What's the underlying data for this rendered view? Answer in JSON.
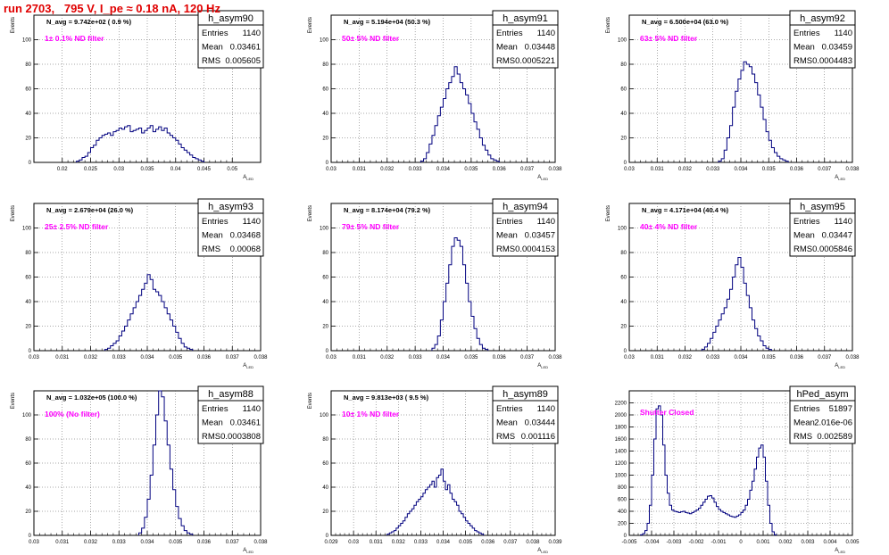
{
  "run_title": "run 2703,   795 V, I_pe ≈ 0.18 nA, 120 Hz",
  "colors": {
    "histogram": "#00007f",
    "annotation": "#ff00ff",
    "title": "#e00000",
    "grid": "#555555"
  },
  "stat_labels": {
    "entries": "Entries",
    "mean": "Mean",
    "rms": "RMS"
  },
  "chart_data": [
    {
      "type": "histogram",
      "name": "h_asym90",
      "navg": "N_avg = 9.742e+02 ( 0.9 %)",
      "note": "1± 0.1% ND filter",
      "stats": {
        "entries": "1140",
        "mean": "0.03461",
        "rms": "0.005605"
      },
      "xlabel": "A_LED",
      "ylabel": "Events",
      "xlim": [
        0.015,
        0.055
      ],
      "ylim": [
        0,
        120
      ],
      "xticks": [
        0.02,
        0.025,
        0.03,
        0.035,
        0.04,
        0.045,
        0.05
      ],
      "xtick_labels": [
        "0.02",
        "0.025",
        "0.03",
        "0.035",
        "0.04",
        "0.045",
        "0.05"
      ],
      "yticks": [
        0,
        20,
        40,
        60,
        80,
        100
      ],
      "hist": {
        "start": 0.0225,
        "width": 0.0005,
        "counts": [
          1,
          2,
          4,
          5,
          8,
          12,
          14,
          18,
          20,
          22,
          23,
          24,
          22,
          25,
          26,
          28,
          27,
          29,
          30,
          25,
          26,
          27,
          28,
          24,
          26,
          28,
          30,
          25,
          27,
          29,
          26,
          28,
          24,
          22,
          20,
          18,
          15,
          12,
          10,
          8,
          6,
          4,
          3,
          2,
          1
        ]
      }
    },
    {
      "type": "histogram",
      "name": "h_asym91",
      "navg": "N_avg = 5.194e+04 (50.3 %)",
      "note": "50± 5% ND filter",
      "stats": {
        "entries": "1140",
        "mean": "0.03448",
        "rms": "0.0005221"
      },
      "xlabel": "A_LED",
      "ylabel": "Events",
      "xlim": [
        0.03,
        0.038
      ],
      "ylim": [
        0,
        120
      ],
      "xticks": [
        0.03,
        0.031,
        0.032,
        0.033,
        0.034,
        0.035,
        0.036,
        0.037,
        0.038
      ],
      "xtick_labels": [
        "0.03",
        "0.031",
        "0.032",
        "0.033",
        "0.034",
        "0.035",
        "0.036",
        "0.037",
        "0.038"
      ],
      "yticks": [
        0,
        20,
        40,
        60,
        80,
        100
      ],
      "hist": {
        "start": 0.0332,
        "width": 0.0001,
        "counts": [
          1,
          3,
          8,
          15,
          22,
          30,
          38,
          45,
          52,
          60,
          65,
          70,
          78,
          72,
          65,
          60,
          55,
          48,
          40,
          33,
          27,
          20,
          14,
          10,
          6,
          3,
          2,
          1
        ]
      }
    },
    {
      "type": "histogram",
      "name": "h_asym92",
      "navg": "N_avg = 6.500e+04 (63.0 %)",
      "note": "63± 5% ND filter",
      "stats": {
        "entries": "1140",
        "mean": "0.03459",
        "rms": "0.0004483"
      },
      "xlabel": "A_LED",
      "ylabel": "Events",
      "xlim": [
        0.03,
        0.038
      ],
      "ylim": [
        0,
        120
      ],
      "xticks": [
        0.03,
        0.031,
        0.032,
        0.033,
        0.034,
        0.035,
        0.036,
        0.037,
        0.038
      ],
      "xtick_labels": [
        "0.03",
        "0.031",
        "0.032",
        "0.033",
        "0.034",
        "0.035",
        "0.036",
        "0.037",
        "0.038"
      ],
      "yticks": [
        0,
        20,
        40,
        60,
        80,
        100
      ],
      "hist": {
        "start": 0.0332,
        "width": 0.0001,
        "counts": [
          1,
          3,
          10,
          20,
          30,
          45,
          58,
          68,
          75,
          82,
          80,
          78,
          72,
          65,
          55,
          45,
          35,
          25,
          18,
          12,
          8,
          5,
          3,
          2,
          1
        ]
      }
    },
    {
      "type": "histogram",
      "name": "h_asym93",
      "navg": "N_avg = 2.679e+04 (26.0 %)",
      "note": "25± 2.5% ND filter",
      "stats": {
        "entries": "1140",
        "mean": "0.03468",
        "rms": "0.00068"
      },
      "xlabel": "A_LED",
      "ylabel": "Events",
      "xlim": [
        0.03,
        0.038
      ],
      "ylim": [
        0,
        120
      ],
      "xticks": [
        0.03,
        0.031,
        0.032,
        0.033,
        0.034,
        0.035,
        0.036,
        0.037,
        0.038
      ],
      "xtick_labels": [
        "0.03",
        "0.031",
        "0.032",
        "0.033",
        "0.034",
        "0.035",
        "0.036",
        "0.037",
        "0.038"
      ],
      "yticks": [
        0,
        20,
        40,
        60,
        80,
        100
      ],
      "hist": {
        "start": 0.0325,
        "width": 0.0001,
        "counts": [
          1,
          2,
          4,
          6,
          8,
          12,
          16,
          20,
          25,
          30,
          35,
          40,
          45,
          50,
          55,
          62,
          58,
          50,
          48,
          45,
          40,
          35,
          30,
          25,
          20,
          15,
          10,
          6,
          3,
          2,
          1
        ]
      }
    },
    {
      "type": "histogram",
      "name": "h_asym94",
      "navg": "N_avg = 8.174e+04 (79.2 %)",
      "note": "79± 5% ND filter",
      "stats": {
        "entries": "1140",
        "mean": "0.03457",
        "rms": "0.0004153"
      },
      "xlabel": "A_LED",
      "ylabel": "Events",
      "xlim": [
        0.03,
        0.038
      ],
      "ylim": [
        0,
        120
      ],
      "xticks": [
        0.03,
        0.031,
        0.032,
        0.033,
        0.034,
        0.035,
        0.036,
        0.037,
        0.038
      ],
      "xtick_labels": [
        "0.03",
        "0.031",
        "0.032",
        "0.033",
        "0.034",
        "0.035",
        "0.036",
        "0.037",
        "0.038"
      ],
      "yticks": [
        0,
        20,
        40,
        60,
        80,
        100
      ],
      "hist": {
        "start": 0.0336,
        "width": 0.0001,
        "counts": [
          2,
          5,
          12,
          25,
          40,
          55,
          70,
          85,
          92,
          90,
          85,
          70,
          55,
          40,
          28,
          18,
          10,
          5,
          2,
          1
        ]
      }
    },
    {
      "type": "histogram",
      "name": "h_asym95",
      "navg": "N_avg = 4.171e+04 (40.4 %)",
      "note": "40± 4% ND filter",
      "stats": {
        "entries": "1140",
        "mean": "0.03447",
        "rms": "0.0005846"
      },
      "xlabel": "A_LED",
      "ylabel": "Events",
      "xlim": [
        0.03,
        0.038
      ],
      "ylim": [
        0,
        120
      ],
      "xticks": [
        0.03,
        0.031,
        0.032,
        0.033,
        0.034,
        0.035,
        0.036,
        0.037,
        0.038
      ],
      "xtick_labels": [
        "0.03",
        "0.031",
        "0.032",
        "0.033",
        "0.034",
        "0.035",
        "0.036",
        "0.037",
        "0.038"
      ],
      "yticks": [
        0,
        20,
        40,
        60,
        80,
        100
      ],
      "hist": {
        "start": 0.0326,
        "width": 0.0001,
        "counts": [
          1,
          3,
          6,
          10,
          15,
          20,
          25,
          30,
          35,
          42,
          50,
          60,
          70,
          76,
          68,
          55,
          45,
          35,
          25,
          18,
          12,
          8,
          4,
          2,
          1
        ]
      }
    },
    {
      "type": "histogram",
      "name": "h_asym88",
      "navg": "N_avg = 1.032e+05 (100.0 %)",
      "note": "100% (No filter)",
      "stats": {
        "entries": "1140",
        "mean": "0.03461",
        "rms": "0.0003808"
      },
      "xlabel": "A_LED",
      "ylabel": "Events",
      "xlim": [
        0.03,
        0.038
      ],
      "ylim": [
        0,
        120
      ],
      "xticks": [
        0.03,
        0.031,
        0.032,
        0.033,
        0.034,
        0.035,
        0.036,
        0.037,
        0.038
      ],
      "xtick_labels": [
        "0.03",
        "0.031",
        "0.032",
        "0.033",
        "0.034",
        "0.035",
        "0.036",
        "0.037",
        "0.038"
      ],
      "yticks": [
        0,
        20,
        40,
        60,
        80,
        100
      ],
      "hist": {
        "start": 0.0337,
        "width": 0.0001,
        "counts": [
          2,
          6,
          15,
          30,
          50,
          75,
          100,
          125,
          115,
          95,
          75,
          55,
          38,
          24,
          14,
          8,
          4,
          2,
          1
        ]
      }
    },
    {
      "type": "histogram",
      "name": "h_asym89",
      "navg": "N_avg = 9.813e+03 ( 9.5 %)",
      "note": "10± 1% ND filter",
      "stats": {
        "entries": "1140",
        "mean": "0.03444",
        "rms": "0.001116"
      },
      "xlabel": "A_LED",
      "ylabel": "Events",
      "xlim": [
        0.029,
        0.039
      ],
      "ylim": [
        0,
        120
      ],
      "xticks": [
        0.029,
        0.03,
        0.031,
        0.032,
        0.033,
        0.034,
        0.035,
        0.036,
        0.037,
        0.038,
        0.039
      ],
      "xtick_labels": [
        "0.029",
        "0.03",
        "0.031",
        "0.032",
        "0.033",
        "0.034",
        "0.035",
        "0.036",
        "0.037",
        "0.038",
        "0.039"
      ],
      "yticks": [
        0,
        20,
        40,
        60,
        80,
        100
      ],
      "hist": {
        "start": 0.0315,
        "width": 0.0001,
        "counts": [
          1,
          2,
          3,
          4,
          6,
          8,
          10,
          12,
          15,
          18,
          20,
          22,
          25,
          28,
          30,
          32,
          35,
          38,
          40,
          42,
          45,
          40,
          48,
          50,
          55,
          45,
          38,
          42,
          35,
          30,
          28,
          25,
          20,
          18,
          15,
          12,
          10,
          8,
          6,
          4,
          3,
          2,
          1
        ]
      }
    },
    {
      "type": "histogram",
      "name": "hPed_asym",
      "navg": "",
      "note": "Shutter Closed",
      "stats": {
        "entries": "51897",
        "mean": "2.016e-06",
        "rms": "0.002589"
      },
      "xlabel": "A_LED",
      "ylabel": "",
      "xlim": [
        -0.005,
        0.005
      ],
      "ylim": [
        0,
        2400
      ],
      "xticks": [
        -0.005,
        -0.004,
        -0.003,
        -0.002,
        -0.001,
        0,
        0.001,
        0.002,
        0.003,
        0.004,
        0.005
      ],
      "xtick_labels": [
        "-0.005",
        "-0.004",
        "-0.003",
        "-0.002",
        "-0.001",
        "0",
        "0.001",
        "0.002",
        "0.003",
        "0.004",
        "0.005"
      ],
      "yticks": [
        0,
        200,
        400,
        600,
        800,
        1000,
        1200,
        1400,
        1600,
        1800,
        2000,
        2200
      ],
      "hist": {
        "start": -0.0045,
        "width": 0.0001,
        "counts": [
          10,
          30,
          80,
          200,
          500,
          1000,
          1600,
          2100,
          2150,
          2000,
          1500,
          1000,
          700,
          500,
          420,
          400,
          390,
          380,
          390,
          400,
          380,
          370,
          360,
          380,
          400,
          420,
          450,
          500,
          550,
          600,
          650,
          660,
          620,
          550,
          480,
          430,
          400,
          380,
          360,
          340,
          320,
          310,
          300,
          320,
          340,
          380,
          420,
          500,
          600,
          750,
          900,
          1100,
          1300,
          1450,
          1500,
          1300,
          900,
          500,
          200,
          60,
          10
        ]
      }
    }
  ]
}
